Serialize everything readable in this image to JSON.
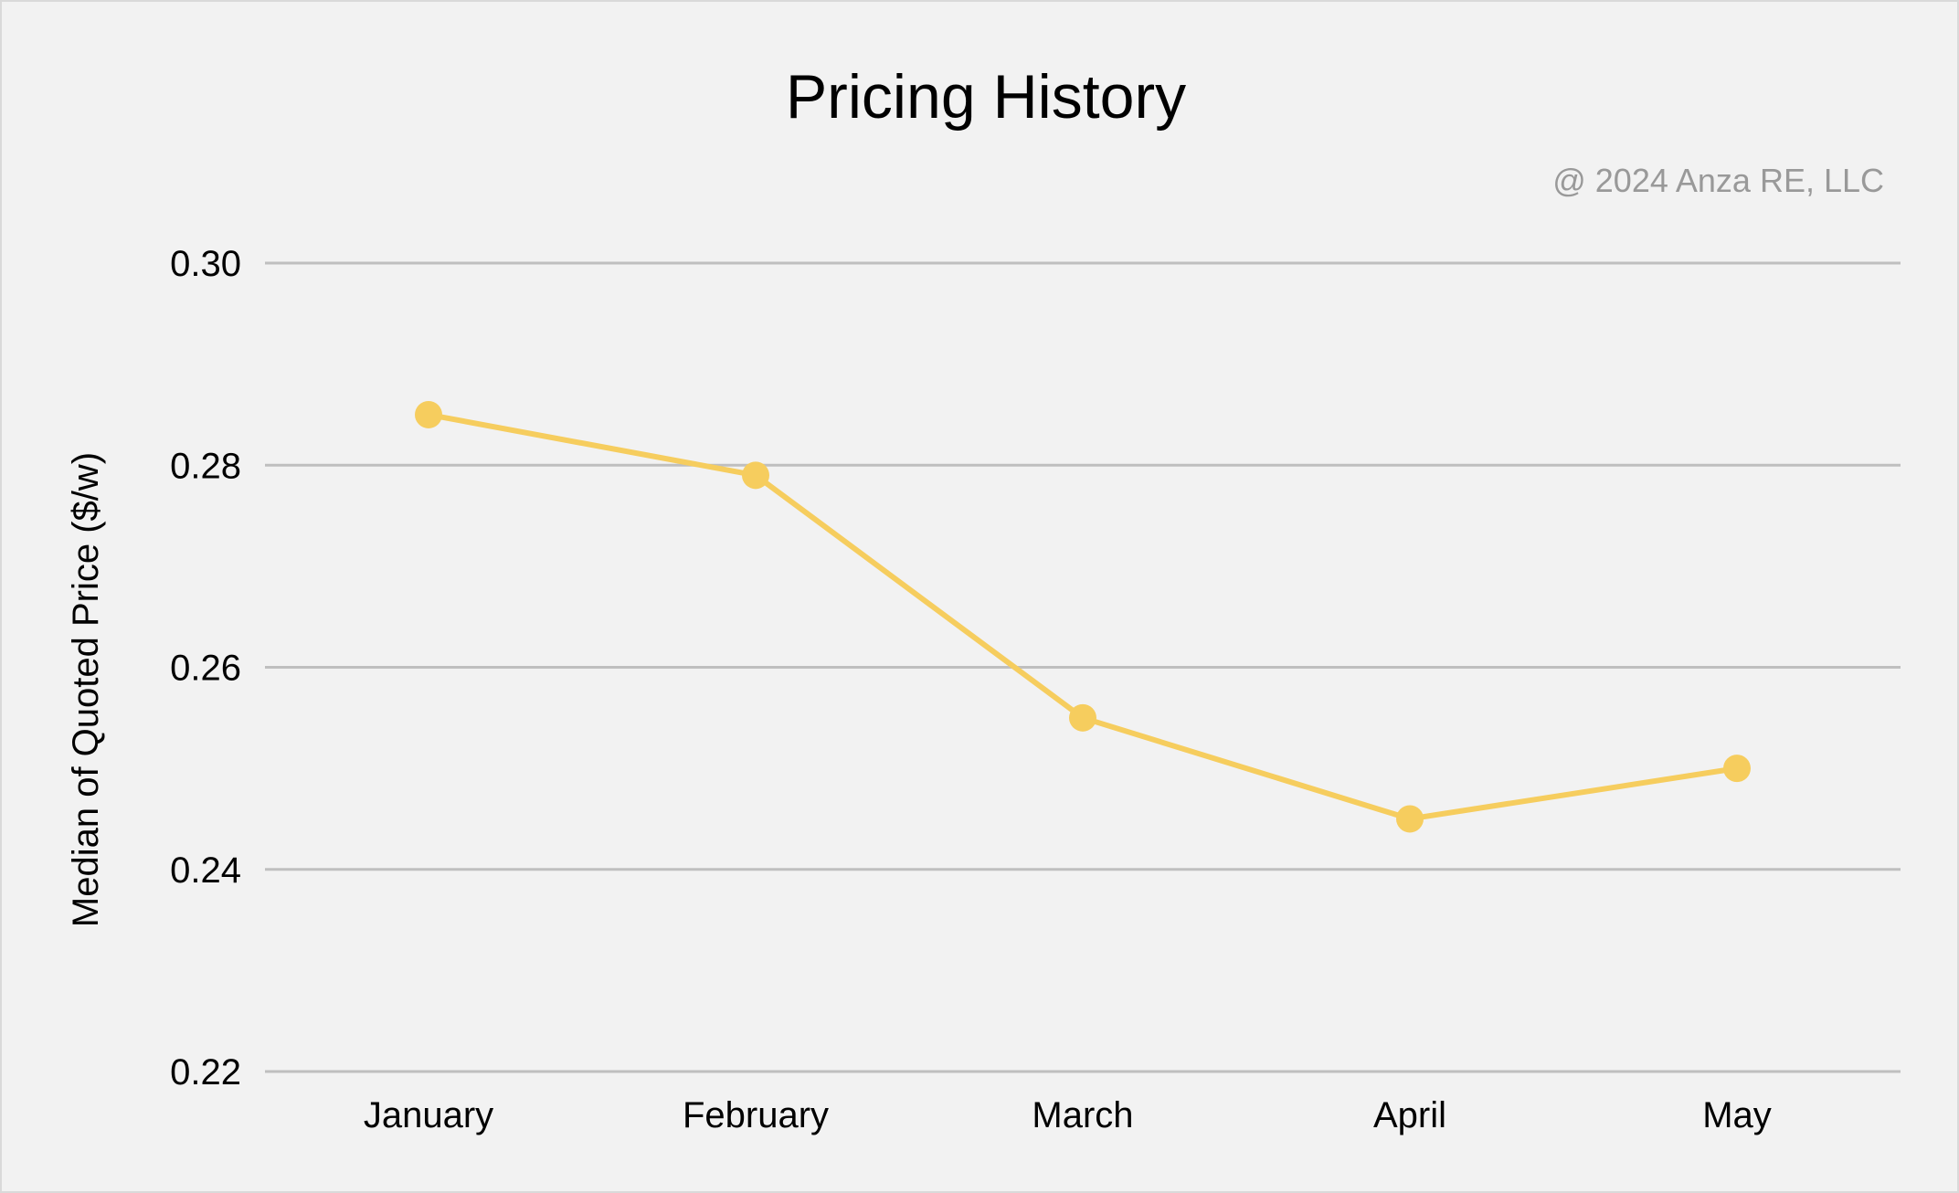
{
  "chart_data": {
    "type": "line",
    "title": "Pricing History",
    "annotation": "@ 2024 Anza RE, LLC",
    "xlabel": "",
    "ylabel": "Median of Quoted Price ($/w)",
    "categories": [
      "January",
      "February",
      "March",
      "April",
      "May"
    ],
    "series": [
      {
        "values": [
          0.285,
          0.279,
          0.255,
          0.245,
          0.25
        ]
      }
    ],
    "ylim": [
      0.22,
      0.3
    ],
    "yticks": [
      "0.22",
      "0.24",
      "0.26",
      "0.28",
      "0.30"
    ],
    "grid": true,
    "legend": "none",
    "colors": {
      "series": "#f6cd5e",
      "grid": "#bfbfbf",
      "background": "#f2f2f2",
      "annotation": "#999999"
    }
  }
}
